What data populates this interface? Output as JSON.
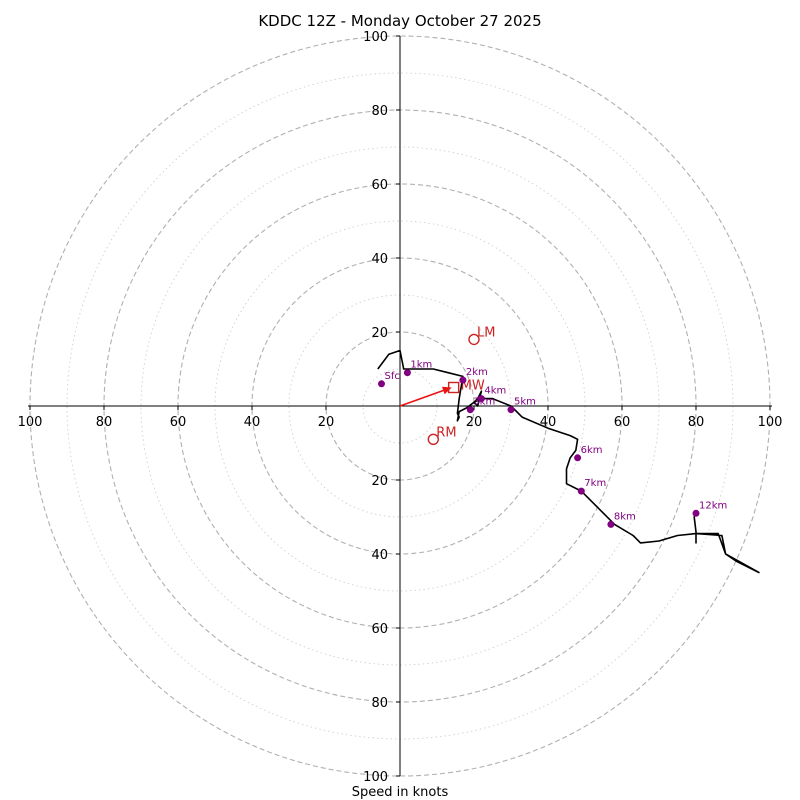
{
  "chart_data": {
    "type": "hodograph",
    "title": "KDDC 12Z - Monday October 27 2025",
    "xlabel": "Speed in knots",
    "units": "knots",
    "max_ring": 100,
    "major_rings": [
      20,
      40,
      60,
      80,
      100
    ],
    "minor_rings": [
      10,
      30,
      50,
      70,
      90
    ],
    "x_tick_labels": [
      "100",
      "80",
      "60",
      "40",
      "20",
      "20",
      "40",
      "60",
      "80",
      "100"
    ],
    "y_tick_labels": [
      "100",
      "80",
      "60",
      "40",
      "20",
      "20",
      "40",
      "60",
      "80",
      "100"
    ],
    "trace": [
      [
        -6,
        10
      ],
      [
        -3,
        14
      ],
      [
        0,
        15
      ],
      [
        1,
        10
      ],
      [
        3,
        10
      ],
      [
        9,
        10
      ],
      [
        13,
        9
      ],
      [
        17,
        8
      ],
      [
        16,
        2
      ],
      [
        15.5,
        -2
      ],
      [
        16,
        -3
      ],
      [
        15.5,
        -4
      ],
      [
        16,
        -1.5
      ],
      [
        18,
        -0.5
      ],
      [
        20,
        1
      ],
      [
        21,
        0
      ],
      [
        22,
        4
      ],
      [
        21,
        2
      ],
      [
        20,
        1
      ],
      [
        22,
        2
      ],
      [
        25,
        2
      ],
      [
        30,
        0
      ],
      [
        33,
        -3
      ],
      [
        40,
        -6
      ],
      [
        46,
        -8
      ],
      [
        48,
        -9
      ],
      [
        47.5,
        -12
      ],
      [
        46,
        -14
      ],
      [
        45,
        -17
      ],
      [
        45,
        -21
      ],
      [
        49,
        -23
      ],
      [
        52,
        -26
      ],
      [
        55,
        -29
      ],
      [
        58,
        -32
      ],
      [
        63,
        -35
      ],
      [
        65,
        -37
      ],
      [
        70,
        -36.5
      ],
      [
        75,
        -35
      ],
      [
        80,
        -34.5
      ],
      [
        86,
        -34.5
      ],
      [
        88,
        -40
      ],
      [
        91,
        -42
      ],
      [
        97,
        -45
      ],
      [
        88,
        -40
      ],
      [
        87,
        -35
      ],
      [
        80,
        -34.5
      ],
      [
        80,
        -37
      ],
      [
        80,
        -34
      ],
      [
        79.5,
        -30
      ],
      [
        80,
        -28.5
      ]
    ],
    "height_markers": [
      {
        "label": "Sfc",
        "u": -5,
        "v": 6
      },
      {
        "label": "1km",
        "u": 2,
        "v": 9
      },
      {
        "label": "2km",
        "u": 17,
        "v": 7
      },
      {
        "label": "3km",
        "u": 19,
        "v": -1
      },
      {
        "label": "4km",
        "u": 22,
        "v": 2
      },
      {
        "label": "5km",
        "u": 30,
        "v": -1
      },
      {
        "label": "6km",
        "u": 48,
        "v": -14
      },
      {
        "label": "7km",
        "u": 49,
        "v": -23
      },
      {
        "label": "8km",
        "u": 57,
        "v": -32
      },
      {
        "label": "12km",
        "u": 80,
        "v": -29
      }
    ],
    "storm_motion": {
      "rm": {
        "label": "RM",
        "u": 9,
        "v": -9
      },
      "lm": {
        "label": "LM",
        "u": 20,
        "v": 18
      },
      "mw": {
        "label": "MW",
        "u": 14.5,
        "v": 5
      }
    },
    "shear_vector": {
      "u": 14,
      "v": 5
    }
  }
}
